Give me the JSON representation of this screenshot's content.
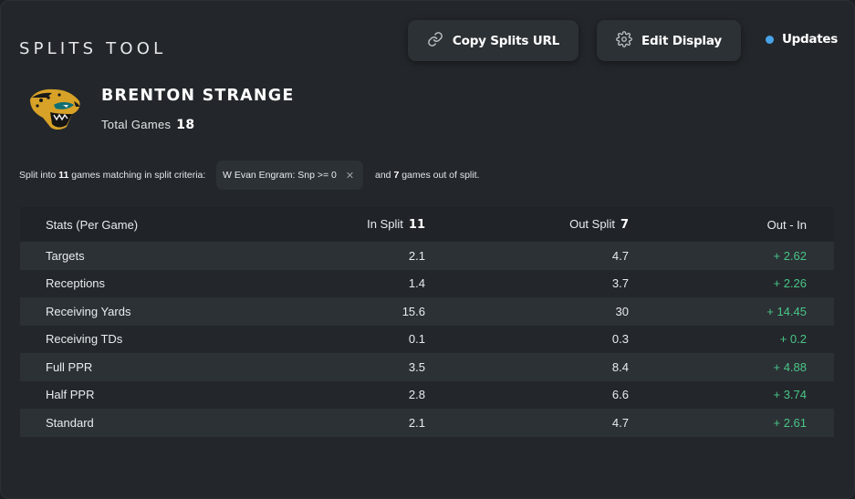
{
  "header": {
    "title": "SPLITS TOOL",
    "copy_button": "Copy Splits URL",
    "edit_button": "Edit Display",
    "updates": "Updates"
  },
  "player": {
    "name": "BRENTON STRANGE",
    "total_games_label": "Total Games",
    "total_games": "18"
  },
  "split": {
    "prefix": "Split into",
    "in_count": "11",
    "middle": "games matching in split criteria:",
    "criteria": "W Evan Engram: Snp >= 0",
    "after_prefix": "and",
    "out_count": "7",
    "after_suffix": "games out of split."
  },
  "table": {
    "headers": {
      "stat": "Stats (Per Game)",
      "in_split": "In Split",
      "in_count": "11",
      "out_split": "Out Split",
      "out_count": "7",
      "diff": "Out - In"
    },
    "rows": [
      {
        "stat": "Targets",
        "in": "2.1",
        "out": "4.7",
        "diff": "+ 2.62"
      },
      {
        "stat": "Receptions",
        "in": "1.4",
        "out": "3.7",
        "diff": "+ 2.26"
      },
      {
        "stat": "Receiving Yards",
        "in": "15.6",
        "out": "30",
        "diff": "+ 14.45"
      },
      {
        "stat": "Receiving TDs",
        "in": "0.1",
        "out": "0.3",
        "diff": "+ 0.2"
      },
      {
        "stat": "Full PPR",
        "in": "3.5",
        "out": "8.4",
        "diff": "+ 4.88"
      },
      {
        "stat": "Half PPR",
        "in": "2.8",
        "out": "6.6",
        "diff": "+ 3.74"
      },
      {
        "stat": "Standard",
        "in": "2.1",
        "out": "4.7",
        "diff": "+ 2.61"
      }
    ]
  },
  "colors": {
    "background": "#23272b",
    "row_alt": "#2c3135",
    "positive": "#49c487",
    "accent_dot": "#49a3e8"
  },
  "icons": {
    "copy": "link-icon",
    "edit": "gear-icon",
    "team": "jaguar-logo"
  }
}
